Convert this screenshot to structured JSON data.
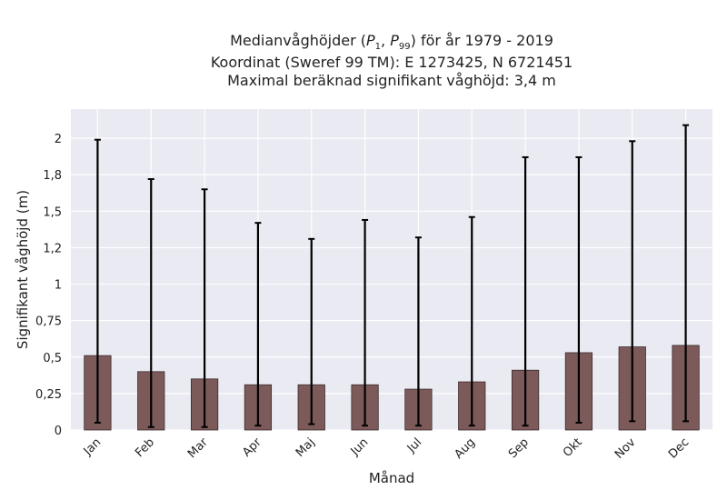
{
  "chart_data": {
    "type": "bar",
    "title_prefix": "Medianvåghöjder (",
    "title_p1": "P",
    "title_p1_sub": "1",
    "title_sep": ", ",
    "title_p99": "P",
    "title_p99_sub": "99",
    "title_suffix": ") för år 1979 - 2019",
    "title_line2": "Koordinat (Sweref 99 TM): E 1273425, N 6721451",
    "title_line3": "Maximal beräknad signifikant våghöjd: 3,4 m",
    "xlabel": "Månad",
    "ylabel": "Signifikant våghöjd (m)",
    "categories": [
      "Jan",
      "Feb",
      "Mar",
      "Apr",
      "Maj",
      "Jun",
      "Jul",
      "Aug",
      "Sep",
      "Okt",
      "Nov",
      "Dec"
    ],
    "values": [
      0.51,
      0.4,
      0.35,
      0.31,
      0.31,
      0.31,
      0.28,
      0.33,
      0.41,
      0.53,
      0.57,
      0.58
    ],
    "lower": [
      0.05,
      0.02,
      0.02,
      0.03,
      0.04,
      0.03,
      0.03,
      0.03,
      0.03,
      0.05,
      0.06,
      0.06
    ],
    "upper": [
      1.99,
      1.72,
      1.65,
      1.42,
      1.31,
      1.44,
      1.32,
      1.46,
      1.87,
      1.87,
      1.98,
      2.09
    ],
    "yticks": [
      0,
      0.25,
      0.5,
      0.75,
      1,
      1.25,
      1.5,
      1.75,
      2
    ],
    "ytick_labels": [
      "0",
      "0,25",
      "0,5",
      "0,75",
      "1",
      "1,2",
      "1,5",
      "1,8",
      "2"
    ],
    "ylim": [
      0,
      2.2
    ],
    "grid": true,
    "colors": {
      "bar": "#7d5a5a",
      "bar_edge": "#3a2a2a",
      "errorbar": "#000000",
      "plot_bg": "#eaeaf2",
      "grid": "#ffffff"
    }
  }
}
